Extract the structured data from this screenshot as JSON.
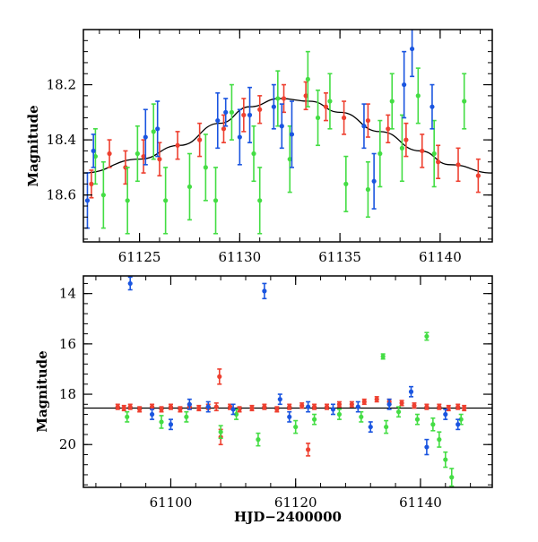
{
  "chart_data": [
    {
      "id": "top",
      "type": "scatter",
      "title": "",
      "xlabel": "",
      "ylabel": "Magnitude",
      "xlim": [
        61122.2,
        61142.6
      ],
      "ylim": [
        18.77,
        18.0
      ],
      "y_inverted": true,
      "xticks": [
        61125,
        61130,
        61135,
        61140
      ],
      "xtick_labels": [
        "61125",
        "61130",
        "61135",
        "61140"
      ],
      "yticks": [
        18.2,
        18.4,
        18.6
      ],
      "ytick_labels": [
        "18.2",
        "18.4",
        "18.6"
      ],
      "model_curve": {
        "color": "#000000",
        "points": [
          [
            61122.2,
            18.52
          ],
          [
            61125,
            18.47
          ],
          [
            61127,
            18.42
          ],
          [
            61129,
            18.34
          ],
          [
            61130.5,
            18.28
          ],
          [
            61132,
            18.25
          ],
          [
            61133.5,
            18.26
          ],
          [
            61135,
            18.3
          ],
          [
            61137,
            18.37
          ],
          [
            61139,
            18.44
          ],
          [
            61140.5,
            18.49
          ],
          [
            61142.6,
            18.52
          ]
        ]
      },
      "series": [
        {
          "name": "red",
          "color": "#ee4030",
          "points": [
            [
              61122.6,
              18.56,
              0.05
            ],
            [
              61123.5,
              18.45,
              0.05
            ],
            [
              61124.3,
              18.5,
              0.06
            ],
            [
              61125.2,
              18.46,
              0.06
            ],
            [
              61126.0,
              18.47,
              0.06
            ],
            [
              61126.9,
              18.42,
              0.05
            ],
            [
              61128.0,
              18.4,
              0.06
            ],
            [
              61129.2,
              18.36,
              0.05
            ],
            [
              61130.2,
              18.31,
              0.06
            ],
            [
              61131.0,
              18.29,
              0.05
            ],
            [
              61132.2,
              18.25,
              0.05
            ],
            [
              61133.3,
              18.24,
              0.05
            ],
            [
              61134.3,
              18.28,
              0.05
            ],
            [
              61135.2,
              18.32,
              0.06
            ],
            [
              61136.4,
              18.33,
              0.06
            ],
            [
              61137.4,
              18.36,
              0.05
            ],
            [
              61138.3,
              18.4,
              0.06
            ],
            [
              61139.1,
              18.44,
              0.06
            ],
            [
              61139.9,
              18.48,
              0.06
            ],
            [
              61140.9,
              18.49,
              0.06
            ],
            [
              61141.9,
              18.53,
              0.06
            ]
          ]
        },
        {
          "name": "green",
          "color": "#44dd44",
          "points": [
            [
              61122.8,
              18.46,
              0.1
            ],
            [
              61123.2,
              18.6,
              0.12
            ],
            [
              61124.4,
              18.62,
              0.12
            ],
            [
              61124.9,
              18.45,
              0.1
            ],
            [
              61125.7,
              18.37,
              0.1
            ],
            [
              61126.3,
              18.62,
              0.12
            ],
            [
              61127.5,
              18.57,
              0.12
            ],
            [
              61128.3,
              18.5,
              0.12
            ],
            [
              61128.8,
              18.62,
              0.12
            ],
            [
              61129.6,
              18.3,
              0.1
            ],
            [
              61130.7,
              18.45,
              0.1
            ],
            [
              61131.0,
              18.62,
              0.12
            ],
            [
              61131.9,
              18.25,
              0.1
            ],
            [
              61132.5,
              18.47,
              0.12
            ],
            [
              61133.4,
              18.18,
              0.1
            ],
            [
              61133.9,
              18.32,
              0.1
            ],
            [
              61134.5,
              18.26,
              0.1
            ],
            [
              61135.3,
              18.56,
              0.1
            ],
            [
              61136.4,
              18.58,
              0.1
            ],
            [
              61137.0,
              18.45,
              0.12
            ],
            [
              61137.6,
              18.26,
              0.1
            ],
            [
              61138.1,
              18.43,
              0.12
            ],
            [
              61138.9,
              18.24,
              0.1
            ],
            [
              61139.7,
              18.45,
              0.12
            ],
            [
              61141.2,
              18.26,
              0.1
            ]
          ]
        },
        {
          "name": "blue",
          "color": "#1a55e0",
          "points": [
            [
              61122.4,
              18.62,
              0.1
            ],
            [
              61122.7,
              18.44,
              0.06
            ],
            [
              61125.3,
              18.39,
              0.1
            ],
            [
              61125.9,
              18.36,
              0.1
            ],
            [
              61128.9,
              18.33,
              0.1
            ],
            [
              61129.3,
              18.3,
              0.05
            ],
            [
              61130.0,
              18.39,
              0.1
            ],
            [
              61130.5,
              18.31,
              0.1
            ],
            [
              61131.7,
              18.28,
              0.08
            ],
            [
              61132.1,
              18.35,
              0.08
            ],
            [
              61132.6,
              18.38,
              0.12
            ],
            [
              61136.2,
              18.35,
              0.08
            ],
            [
              61136.7,
              18.55,
              0.1
            ],
            [
              61138.2,
              18.2,
              0.12
            ],
            [
              61138.6,
              18.07,
              0.1
            ],
            [
              61139.6,
              18.28,
              0.08
            ]
          ]
        }
      ]
    },
    {
      "id": "bottom",
      "type": "scatter",
      "title": "",
      "xlabel": "HJD−2400000",
      "ylabel": "Magnitude",
      "xlim": [
        61086.0,
        61151.5
      ],
      "ylim": [
        21.7,
        13.3
      ],
      "y_inverted": true,
      "xticks": [
        61100,
        61120,
        61140
      ],
      "xtick_labels": [
        "61100",
        "61120",
        "61140"
      ],
      "yticks": [
        14,
        16,
        18,
        20
      ],
      "ytick_labels": [
        "14",
        "16",
        "18",
        "20"
      ],
      "reference_line": {
        "y": 18.55,
        "color": "#000000"
      },
      "series": [
        {
          "name": "red",
          "color": "#ee4030",
          "points": [
            [
              61091.5,
              18.5,
              0.1
            ],
            [
              61092.5,
              18.55,
              0.1
            ],
            [
              61093.5,
              18.5,
              0.1
            ],
            [
              61095.0,
              18.6,
              0.1
            ],
            [
              61097.0,
              18.5,
              0.1
            ],
            [
              61098.5,
              18.6,
              0.1
            ],
            [
              61100.0,
              18.5,
              0.1
            ],
            [
              61101.5,
              18.6,
              0.1
            ],
            [
              61103.0,
              18.5,
              0.1
            ],
            [
              61104.5,
              18.55,
              0.1
            ],
            [
              61106.0,
              18.5,
              0.1
            ],
            [
              61107.3,
              18.5,
              0.15
            ],
            [
              61107.8,
              17.3,
              0.3
            ],
            [
              61108.0,
              19.7,
              0.3
            ],
            [
              61109.5,
              18.5,
              0.1
            ],
            [
              61111.0,
              18.6,
              0.1
            ],
            [
              61113.0,
              18.55,
              0.1
            ],
            [
              61115.0,
              18.5,
              0.1
            ],
            [
              61117.0,
              18.6,
              0.1
            ],
            [
              61119.0,
              18.5,
              0.1
            ],
            [
              61121.0,
              18.45,
              0.1
            ],
            [
              61122.0,
              20.2,
              0.25
            ],
            [
              61123.0,
              18.5,
              0.1
            ],
            [
              61125.0,
              18.5,
              0.1
            ],
            [
              61127.0,
              18.4,
              0.1
            ],
            [
              61129.0,
              18.4,
              0.1
            ],
            [
              61131.0,
              18.3,
              0.1
            ],
            [
              61133.0,
              18.2,
              0.1
            ],
            [
              61135.0,
              18.3,
              0.1
            ],
            [
              61137.0,
              18.35,
              0.1
            ],
            [
              61139.0,
              18.45,
              0.1
            ],
            [
              61141.0,
              18.5,
              0.1
            ],
            [
              61143.0,
              18.5,
              0.1
            ],
            [
              61144.5,
              18.55,
              0.1
            ],
            [
              61146.0,
              18.5,
              0.1
            ],
            [
              61147.0,
              18.55,
              0.1
            ]
          ]
        },
        {
          "name": "green",
          "color": "#44dd44",
          "points": [
            [
              61093.0,
              18.9,
              0.2
            ],
            [
              61098.5,
              19.1,
              0.25
            ],
            [
              61102.5,
              18.9,
              0.2
            ],
            [
              61108.0,
              19.5,
              0.25
            ],
            [
              61110.5,
              18.8,
              0.2
            ],
            [
              61114.0,
              19.8,
              0.25
            ],
            [
              61120.0,
              19.3,
              0.25
            ],
            [
              61123.0,
              19.0,
              0.2
            ],
            [
              61127.0,
              18.8,
              0.2
            ],
            [
              61130.5,
              18.9,
              0.2
            ],
            [
              61134.0,
              16.5,
              0.1
            ],
            [
              61134.5,
              19.3,
              0.25
            ],
            [
              61136.5,
              18.7,
              0.2
            ],
            [
              61139.5,
              19.0,
              0.2
            ],
            [
              61141.0,
              15.7,
              0.15
            ],
            [
              61142.0,
              19.2,
              0.25
            ],
            [
              61143.0,
              19.8,
              0.3
            ],
            [
              61144.0,
              20.6,
              0.3
            ],
            [
              61145.0,
              21.3,
              0.35
            ],
            [
              61146.5,
              19.0,
              0.2
            ]
          ]
        },
        {
          "name": "blue",
          "color": "#1a55e0",
          "points": [
            [
              61093.5,
              13.6,
              0.25
            ],
            [
              61097.0,
              18.8,
              0.2
            ],
            [
              61100.0,
              19.2,
              0.2
            ],
            [
              61103.0,
              18.4,
              0.2
            ],
            [
              61106.0,
              18.5,
              0.2
            ],
            [
              61110.0,
              18.6,
              0.2
            ],
            [
              61115.0,
              13.9,
              0.3
            ],
            [
              61117.5,
              18.2,
              0.2
            ],
            [
              61119.0,
              18.9,
              0.2
            ],
            [
              61122.0,
              18.5,
              0.2
            ],
            [
              61126.0,
              18.6,
              0.2
            ],
            [
              61130.0,
              18.5,
              0.2
            ],
            [
              61132.0,
              19.3,
              0.2
            ],
            [
              61135.0,
              18.4,
              0.2
            ],
            [
              61138.5,
              17.9,
              0.2
            ],
            [
              61141.0,
              20.1,
              0.3
            ],
            [
              61144.0,
              18.8,
              0.2
            ],
            [
              61146.0,
              19.2,
              0.2
            ]
          ]
        }
      ]
    }
  ]
}
